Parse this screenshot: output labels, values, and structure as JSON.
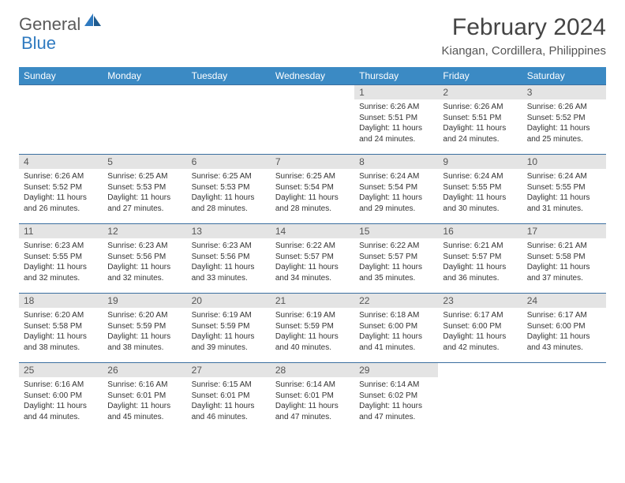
{
  "brand": {
    "general": "General",
    "blue": "Blue"
  },
  "title": "February 2024",
  "location": "Kiangan, Cordillera, Philippines",
  "colors": {
    "header_bg": "#3b8ac4",
    "row_border": "#3b6fa0",
    "daynum_bg": "#e4e4e4",
    "brand_gray": "#5a5a5a",
    "brand_blue": "#2f7ac0"
  },
  "weekdays": [
    "Sunday",
    "Monday",
    "Tuesday",
    "Wednesday",
    "Thursday",
    "Friday",
    "Saturday"
  ],
  "weeks": [
    [
      null,
      null,
      null,
      null,
      {
        "n": "1",
        "sr": "Sunrise: 6:26 AM",
        "ss": "Sunset: 5:51 PM",
        "dl1": "Daylight: 11 hours",
        "dl2": "and 24 minutes."
      },
      {
        "n": "2",
        "sr": "Sunrise: 6:26 AM",
        "ss": "Sunset: 5:51 PM",
        "dl1": "Daylight: 11 hours",
        "dl2": "and 24 minutes."
      },
      {
        "n": "3",
        "sr": "Sunrise: 6:26 AM",
        "ss": "Sunset: 5:52 PM",
        "dl1": "Daylight: 11 hours",
        "dl2": "and 25 minutes."
      }
    ],
    [
      {
        "n": "4",
        "sr": "Sunrise: 6:26 AM",
        "ss": "Sunset: 5:52 PM",
        "dl1": "Daylight: 11 hours",
        "dl2": "and 26 minutes."
      },
      {
        "n": "5",
        "sr": "Sunrise: 6:25 AM",
        "ss": "Sunset: 5:53 PM",
        "dl1": "Daylight: 11 hours",
        "dl2": "and 27 minutes."
      },
      {
        "n": "6",
        "sr": "Sunrise: 6:25 AM",
        "ss": "Sunset: 5:53 PM",
        "dl1": "Daylight: 11 hours",
        "dl2": "and 28 minutes."
      },
      {
        "n": "7",
        "sr": "Sunrise: 6:25 AM",
        "ss": "Sunset: 5:54 PM",
        "dl1": "Daylight: 11 hours",
        "dl2": "and 28 minutes."
      },
      {
        "n": "8",
        "sr": "Sunrise: 6:24 AM",
        "ss": "Sunset: 5:54 PM",
        "dl1": "Daylight: 11 hours",
        "dl2": "and 29 minutes."
      },
      {
        "n": "9",
        "sr": "Sunrise: 6:24 AM",
        "ss": "Sunset: 5:55 PM",
        "dl1": "Daylight: 11 hours",
        "dl2": "and 30 minutes."
      },
      {
        "n": "10",
        "sr": "Sunrise: 6:24 AM",
        "ss": "Sunset: 5:55 PM",
        "dl1": "Daylight: 11 hours",
        "dl2": "and 31 minutes."
      }
    ],
    [
      {
        "n": "11",
        "sr": "Sunrise: 6:23 AM",
        "ss": "Sunset: 5:55 PM",
        "dl1": "Daylight: 11 hours",
        "dl2": "and 32 minutes."
      },
      {
        "n": "12",
        "sr": "Sunrise: 6:23 AM",
        "ss": "Sunset: 5:56 PM",
        "dl1": "Daylight: 11 hours",
        "dl2": "and 32 minutes."
      },
      {
        "n": "13",
        "sr": "Sunrise: 6:23 AM",
        "ss": "Sunset: 5:56 PM",
        "dl1": "Daylight: 11 hours",
        "dl2": "and 33 minutes."
      },
      {
        "n": "14",
        "sr": "Sunrise: 6:22 AM",
        "ss": "Sunset: 5:57 PM",
        "dl1": "Daylight: 11 hours",
        "dl2": "and 34 minutes."
      },
      {
        "n": "15",
        "sr": "Sunrise: 6:22 AM",
        "ss": "Sunset: 5:57 PM",
        "dl1": "Daylight: 11 hours",
        "dl2": "and 35 minutes."
      },
      {
        "n": "16",
        "sr": "Sunrise: 6:21 AM",
        "ss": "Sunset: 5:57 PM",
        "dl1": "Daylight: 11 hours",
        "dl2": "and 36 minutes."
      },
      {
        "n": "17",
        "sr": "Sunrise: 6:21 AM",
        "ss": "Sunset: 5:58 PM",
        "dl1": "Daylight: 11 hours",
        "dl2": "and 37 minutes."
      }
    ],
    [
      {
        "n": "18",
        "sr": "Sunrise: 6:20 AM",
        "ss": "Sunset: 5:58 PM",
        "dl1": "Daylight: 11 hours",
        "dl2": "and 38 minutes."
      },
      {
        "n": "19",
        "sr": "Sunrise: 6:20 AM",
        "ss": "Sunset: 5:59 PM",
        "dl1": "Daylight: 11 hours",
        "dl2": "and 38 minutes."
      },
      {
        "n": "20",
        "sr": "Sunrise: 6:19 AM",
        "ss": "Sunset: 5:59 PM",
        "dl1": "Daylight: 11 hours",
        "dl2": "and 39 minutes."
      },
      {
        "n": "21",
        "sr": "Sunrise: 6:19 AM",
        "ss": "Sunset: 5:59 PM",
        "dl1": "Daylight: 11 hours",
        "dl2": "and 40 minutes."
      },
      {
        "n": "22",
        "sr": "Sunrise: 6:18 AM",
        "ss": "Sunset: 6:00 PM",
        "dl1": "Daylight: 11 hours",
        "dl2": "and 41 minutes."
      },
      {
        "n": "23",
        "sr": "Sunrise: 6:17 AM",
        "ss": "Sunset: 6:00 PM",
        "dl1": "Daylight: 11 hours",
        "dl2": "and 42 minutes."
      },
      {
        "n": "24",
        "sr": "Sunrise: 6:17 AM",
        "ss": "Sunset: 6:00 PM",
        "dl1": "Daylight: 11 hours",
        "dl2": "and 43 minutes."
      }
    ],
    [
      {
        "n": "25",
        "sr": "Sunrise: 6:16 AM",
        "ss": "Sunset: 6:00 PM",
        "dl1": "Daylight: 11 hours",
        "dl2": "and 44 minutes."
      },
      {
        "n": "26",
        "sr": "Sunrise: 6:16 AM",
        "ss": "Sunset: 6:01 PM",
        "dl1": "Daylight: 11 hours",
        "dl2": "and 45 minutes."
      },
      {
        "n": "27",
        "sr": "Sunrise: 6:15 AM",
        "ss": "Sunset: 6:01 PM",
        "dl1": "Daylight: 11 hours",
        "dl2": "and 46 minutes."
      },
      {
        "n": "28",
        "sr": "Sunrise: 6:14 AM",
        "ss": "Sunset: 6:01 PM",
        "dl1": "Daylight: 11 hours",
        "dl2": "and 47 minutes."
      },
      {
        "n": "29",
        "sr": "Sunrise: 6:14 AM",
        "ss": "Sunset: 6:02 PM",
        "dl1": "Daylight: 11 hours",
        "dl2": "and 47 minutes."
      },
      null,
      null
    ]
  ]
}
